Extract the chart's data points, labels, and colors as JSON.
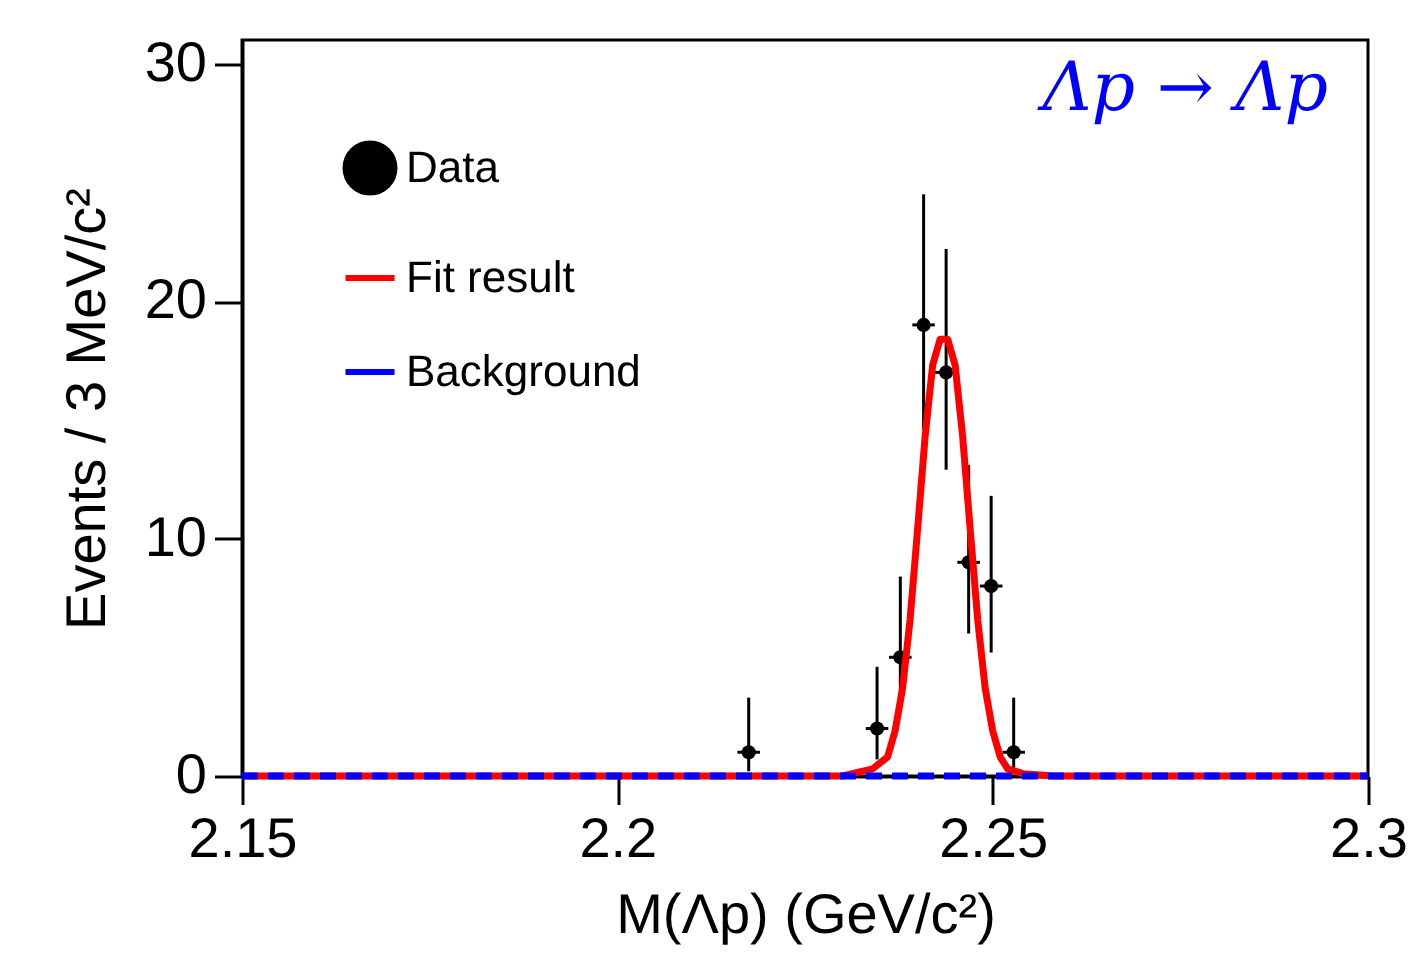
{
  "chart_data": {
    "type": "scatter",
    "xlabel": "M(Λp) (GeV/c²)",
    "ylabel": "Events / 3 MeV/c²",
    "annotations": [
      "Λp → Λp"
    ],
    "xlim": [
      2.15,
      2.3
    ],
    "xticks": [
      2.15,
      2.2,
      2.25,
      2.3
    ],
    "ylim": [
      0,
      31
    ],
    "yticks": [
      0,
      10,
      20,
      30
    ],
    "legend": "top left",
    "grid": false,
    "series": [
      {
        "name": "Data",
        "marker": "circle",
        "color": "#000000",
        "x": [
          2.2175,
          2.2346,
          2.2377,
          2.2408,
          2.2438,
          2.2468,
          2.2498,
          2.2528
        ],
        "values": [
          1,
          2,
          5,
          19,
          17,
          9,
          8,
          1
        ],
        "errors": [
          [
            0.2,
            3.3
          ],
          [
            0.7,
            4.6
          ],
          [
            2.8,
            8.4
          ],
          [
            14.6,
            24.5
          ],
          [
            12.9,
            22.2
          ],
          [
            6,
            13.1
          ],
          [
            5.2,
            11.8
          ],
          [
            0.2,
            3.3
          ]
        ],
        "xerrors": [
          0.0015,
          0.0015,
          0.0015,
          0.0015,
          0.0015,
          0.0015,
          0.0015,
          0.0015
        ]
      },
      {
        "name": "Fit result",
        "type": "line",
        "line_style": "solid",
        "color": "#ff0000",
        "x": [
          2.15,
          2.23,
          2.234,
          2.236,
          2.237,
          2.238,
          2.239,
          2.24,
          2.241,
          2.242,
          2.243,
          2.244,
          2.245,
          2.246,
          2.247,
          2.248,
          2.249,
          2.25,
          2.251,
          2.252,
          2.254,
          2.258,
          2.3
        ],
        "values": [
          0,
          0,
          0.3,
          0.8,
          1.9,
          3.7,
          6.6,
          10.4,
          14.3,
          17.3,
          18.4,
          18.4,
          17.3,
          14.3,
          10.4,
          6.6,
          3.7,
          1.9,
          0.8,
          0.3,
          0.1,
          0,
          0
        ]
      },
      {
        "name": "Background",
        "type": "line",
        "line_style": "dashed",
        "color": "#0000ff",
        "x": [
          2.15,
          2.3
        ],
        "values": [
          0,
          0
        ]
      }
    ]
  }
}
